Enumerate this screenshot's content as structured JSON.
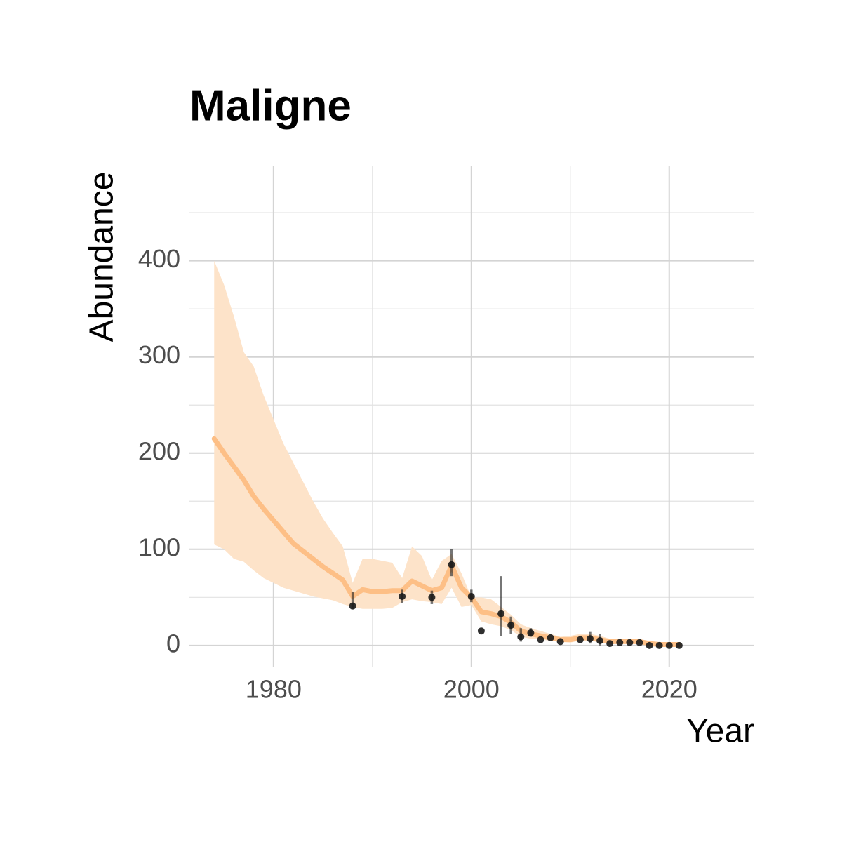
{
  "chart_data": {
    "type": "ribbon-line",
    "title": "Maligne",
    "x_label": "Year",
    "y_label": "Abundance",
    "xlim": [
      1971.5,
      2028.6
    ],
    "ylim": [
      -22,
      499
    ],
    "xticks": [
      1980,
      2000,
      2020
    ],
    "yticks": [
      0,
      100,
      200,
      300,
      400
    ],
    "x_minor_grid": [
      1990,
      2010
    ],
    "y_minor_grid": [
      50,
      150,
      250,
      350,
      450
    ],
    "grid": true,
    "fit": {
      "color": "#fdbf86",
      "x": [
        1974,
        1975,
        1976,
        1977,
        1978,
        1979,
        1980,
        1981,
        1982,
        1983,
        1984,
        1985,
        1986,
        1987,
        1988,
        1989,
        1990,
        1991,
        1992,
        1993,
        1994,
        1995,
        1996,
        1997,
        1998,
        1999,
        2000,
        2001,
        2002,
        2003,
        2004,
        2005,
        2006,
        2007,
        2008,
        2009,
        2010,
        2011,
        2012,
        2013,
        2014,
        2015,
        2016,
        2017,
        2018,
        2019,
        2020,
        2021
      ],
      "values": [
        215,
        200,
        186,
        172,
        155,
        142,
        130,
        118,
        106,
        98,
        90,
        82,
        75,
        68,
        51,
        58,
        56,
        56,
        57,
        57,
        67,
        62,
        57,
        60,
        83,
        60,
        50,
        35,
        33,
        30,
        24,
        15,
        12,
        10,
        8,
        6,
        6,
        8,
        8,
        6,
        4,
        4,
        4,
        4,
        2,
        1,
        1,
        1
      ]
    },
    "ribbon": {
      "color": "#fde3c9",
      "lower": [
        105,
        100,
        90,
        87,
        78,
        70,
        65,
        60,
        57,
        54,
        51,
        49,
        47,
        43,
        40,
        38,
        38,
        38,
        39,
        45,
        48,
        46,
        45,
        43,
        60,
        40,
        42,
        25,
        22,
        20,
        16,
        9,
        7,
        6,
        5,
        4,
        3,
        5,
        5,
        3,
        2,
        2,
        2,
        2,
        0,
        0,
        0,
        0
      ],
      "upper": [
        400,
        375,
        342,
        305,
        290,
        260,
        235,
        210,
        190,
        170,
        150,
        132,
        117,
        103,
        65,
        90,
        90,
        88,
        86,
        70,
        103,
        93,
        68,
        88,
        95,
        75,
        50,
        50,
        48,
        40,
        32,
        22,
        18,
        15,
        12,
        9,
        10,
        12,
        12,
        10,
        7,
        6,
        6,
        6,
        4,
        3,
        3,
        3
      ]
    },
    "observed": {
      "color": "#1a1a1a",
      "x": [
        1988,
        1993,
        1996,
        1998,
        2000,
        2001,
        2003,
        2004,
        2005,
        2006,
        2007,
        2008,
        2009,
        2011,
        2012,
        2013,
        2014,
        2015,
        2016,
        2017,
        2018,
        2019,
        2020,
        2021
      ],
      "values": [
        41,
        51,
        50,
        84,
        51,
        15,
        33,
        21,
        9,
        13,
        6,
        8,
        4,
        6,
        7,
        5,
        2,
        3,
        3,
        3,
        0,
        0,
        0,
        0
      ],
      "low": [
        38,
        44,
        43,
        72,
        45,
        null,
        10,
        12,
        4,
        9,
        null,
        null,
        null,
        null,
        2,
        0,
        null,
        null,
        null,
        null,
        null,
        null,
        null,
        null
      ],
      "high": [
        56,
        58,
        57,
        100,
        58,
        null,
        72,
        30,
        18,
        18,
        null,
        null,
        null,
        null,
        14,
        12,
        null,
        null,
        null,
        null,
        null,
        null,
        null,
        null
      ]
    }
  }
}
